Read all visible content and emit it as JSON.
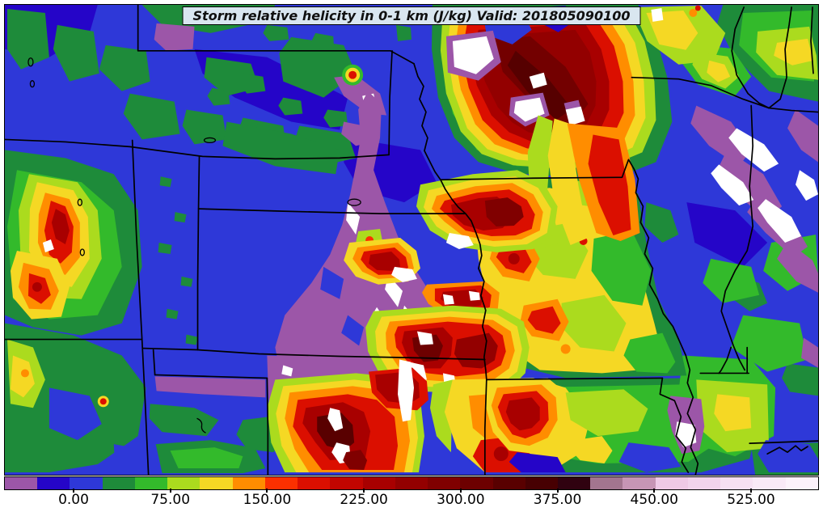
{
  "title": {
    "text": "Storm relative helicity in 0-1 km (J/kg) Valid: 201805090100"
  },
  "map": {
    "background_color": "#2e38d8",
    "state_border_color": "#000000"
  },
  "colorbar": {
    "tick_labels": [
      "0.00",
      "75.00",
      "150.00",
      "225.00",
      "300.00",
      "375.00",
      "450.00",
      "525.00"
    ],
    "colors": [
      "#9c56a8",
      "#2505c8",
      "#2e38d8",
      "#1e8b3a",
      "#33ba2b",
      "#abdb1e",
      "#f5d824",
      "#ff8d00",
      "#fb3000",
      "#db0f00",
      "#c20500",
      "#a80000",
      "#930000",
      "#800000",
      "#6d0000",
      "#590000",
      "#470002",
      "#300210",
      "#a3758f",
      "#c795b5",
      "#efc9e6",
      "#f2d3ec",
      "#f6e0f2",
      "#f9e9f6",
      "#fcf2fa"
    ]
  }
}
